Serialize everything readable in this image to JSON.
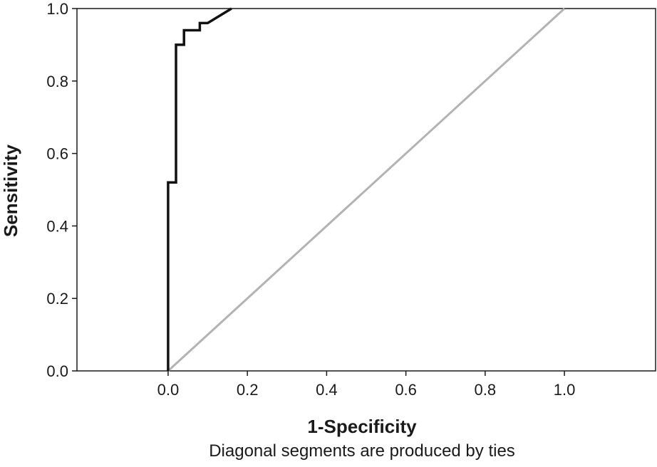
{
  "chart_data": {
    "type": "line",
    "xlabel": "1-Specificity",
    "ylabel": "Sensitivity",
    "footnote": "Diagonal segments are produced by ties",
    "xlim": [
      -0.23,
      1.23
    ],
    "ylim": [
      0,
      1
    ],
    "xticks": [
      "0.0",
      "0.2",
      "0.4",
      "0.6",
      "0.8",
      "1.0"
    ],
    "xtick_values": [
      0,
      0.2,
      0.4,
      0.6,
      0.8,
      1.0
    ],
    "yticks": [
      "0.0",
      "0.2",
      "0.4",
      "0.6",
      "0.8",
      "1.0"
    ],
    "ytick_values": [
      0,
      0.2,
      0.4,
      0.6,
      0.8,
      1.0
    ],
    "grid": false,
    "series": [
      {
        "color": "#111111",
        "x": [
          0.0,
          0.0,
          0.0,
          0.02,
          0.02,
          0.04,
          0.04,
          0.08,
          0.08,
          0.1,
          0.16
        ],
        "y": [
          0.0,
          0.52,
          0.52,
          0.52,
          0.9,
          0.9,
          0.94,
          0.94,
          0.96,
          0.96,
          1.0
        ]
      },
      {
        "color": "#b3b3b3",
        "x": [
          0.0,
          1.0
        ],
        "y": [
          0.0,
          1.0
        ]
      }
    ]
  }
}
